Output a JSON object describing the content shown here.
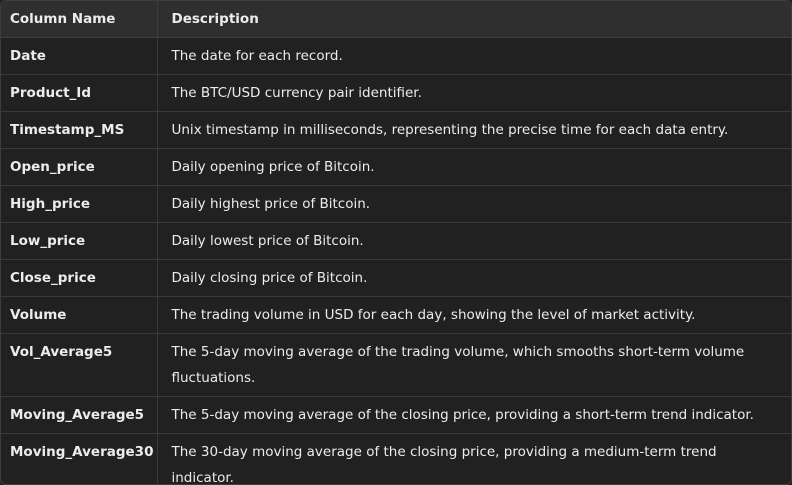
{
  "table": {
    "headers": [
      "Column Name",
      "Description"
    ],
    "rows": [
      {
        "name": "Date",
        "description": "The date for each record."
      },
      {
        "name": "Product_Id",
        "description": "The BTC/USD currency pair identifier."
      },
      {
        "name": "Timestamp_MS",
        "description": "Unix timestamp in milliseconds, representing the precise time for each data entry."
      },
      {
        "name": "Open_price",
        "description": "Daily opening price of Bitcoin."
      },
      {
        "name": "High_price",
        "description": "Daily highest price of Bitcoin."
      },
      {
        "name": "Low_price",
        "description": "Daily lowest price of Bitcoin."
      },
      {
        "name": "Close_price",
        "description": "Daily closing price of Bitcoin."
      },
      {
        "name": "Volume",
        "description": "The trading volume in USD for each day, showing the level of market activity."
      },
      {
        "name": "Vol_Average5",
        "description": "The 5-day moving average of the trading volume, which smooths short-term volume fluctuations."
      },
      {
        "name": "Moving_Average5",
        "description": "The 5-day moving average of the closing price, providing a short-term trend indicator."
      },
      {
        "name": "Moving_Average30",
        "description": "The 30-day moving average of the closing price, providing a medium-term trend indicator."
      }
    ]
  }
}
